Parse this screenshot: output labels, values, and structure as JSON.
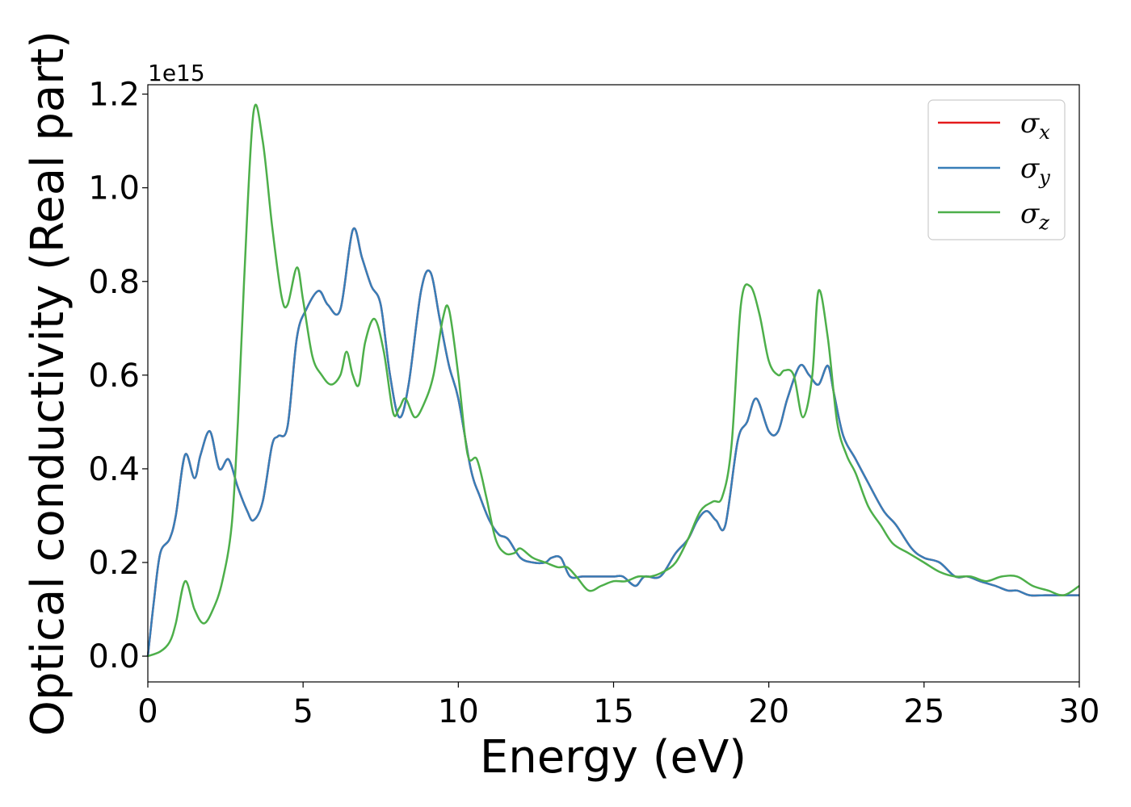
{
  "chart_data": {
    "type": "line",
    "xlabel": "Energy (eV)",
    "ylabel": "Optical conductivity (Real part)",
    "y_offset_label": "1e15",
    "xlim": [
      0,
      30
    ],
    "ylim": [
      -0.055,
      1.22
    ],
    "xticks": [
      0,
      5,
      10,
      15,
      20,
      25,
      30
    ],
    "xtick_labels": [
      "0",
      "5",
      "10",
      "15",
      "20",
      "25",
      "30"
    ],
    "yticks": [
      0.0,
      0.2,
      0.4,
      0.6,
      0.8,
      1.0,
      1.2
    ],
    "ytick_labels": [
      "0.0",
      "0.2",
      "0.4",
      "0.6",
      "0.8",
      "1.0",
      "1.2"
    ],
    "grid": false,
    "legend_position": "top-right",
    "colors": {
      "sigma_x": "#e41a1c",
      "sigma_y": "#377eb8",
      "sigma_z": "#4daf4a"
    },
    "series": [
      {
        "name": "σx",
        "legend_base": "σ",
        "legend_sub": "x",
        "color": "#e41a1c",
        "same_as": "σy",
        "x": [
          0,
          0.2,
          0.4,
          0.7,
          0.9,
          1.2,
          1.5,
          1.7,
          2.0,
          2.3,
          2.6,
          2.9,
          3.2,
          3.4,
          3.7,
          4.0,
          4.2,
          4.5,
          4.8,
          5.1,
          5.5,
          5.8,
          6.2,
          6.6,
          6.9,
          7.2,
          7.5,
          7.8,
          8.1,
          8.4,
          8.8,
          9.1,
          9.4,
          9.7,
          10.0,
          10.4,
          10.7,
          11.0,
          11.3,
          11.6,
          12.0,
          12.4,
          12.8,
          13.0,
          13.3,
          13.6,
          14.0,
          14.5,
          15.0,
          15.3,
          15.7,
          16.0,
          16.5,
          17.0,
          17.4,
          17.7,
          18.0,
          18.3,
          18.6,
          19.0,
          19.3,
          19.6,
          20.0,
          20.3,
          20.6,
          21.0,
          21.3,
          21.6,
          21.9,
          22.1,
          22.4,
          22.8,
          23.2,
          23.7,
          24.1,
          24.6,
          25.0,
          25.5,
          26.0,
          26.4,
          26.8,
          27.3,
          27.7,
          28.0,
          28.4,
          28.9,
          29.2,
          29.6,
          30.0
        ],
        "y": [
          0.0,
          0.12,
          0.22,
          0.25,
          0.3,
          0.43,
          0.38,
          0.43,
          0.48,
          0.4,
          0.42,
          0.36,
          0.31,
          0.29,
          0.33,
          0.45,
          0.47,
          0.49,
          0.68,
          0.74,
          0.78,
          0.75,
          0.74,
          0.91,
          0.85,
          0.79,
          0.75,
          0.6,
          0.51,
          0.58,
          0.78,
          0.82,
          0.72,
          0.62,
          0.55,
          0.4,
          0.34,
          0.29,
          0.26,
          0.25,
          0.21,
          0.2,
          0.2,
          0.21,
          0.21,
          0.17,
          0.17,
          0.17,
          0.17,
          0.17,
          0.15,
          0.17,
          0.17,
          0.22,
          0.25,
          0.29,
          0.31,
          0.29,
          0.28,
          0.46,
          0.5,
          0.55,
          0.48,
          0.48,
          0.55,
          0.62,
          0.6,
          0.58,
          0.62,
          0.56,
          0.47,
          0.42,
          0.37,
          0.31,
          0.28,
          0.23,
          0.21,
          0.2,
          0.17,
          0.17,
          0.16,
          0.15,
          0.14,
          0.14,
          0.13,
          0.13,
          0.13,
          0.13,
          0.13
        ]
      },
      {
        "name": "σy",
        "legend_base": "σ",
        "legend_sub": "y",
        "color": "#377eb8",
        "x": [
          0,
          0.2,
          0.4,
          0.7,
          0.9,
          1.2,
          1.5,
          1.7,
          2.0,
          2.3,
          2.6,
          2.9,
          3.2,
          3.4,
          3.7,
          4.0,
          4.2,
          4.5,
          4.8,
          5.1,
          5.5,
          5.8,
          6.2,
          6.6,
          6.9,
          7.2,
          7.5,
          7.8,
          8.1,
          8.4,
          8.8,
          9.1,
          9.4,
          9.7,
          10.0,
          10.4,
          10.7,
          11.0,
          11.3,
          11.6,
          12.0,
          12.4,
          12.8,
          13.0,
          13.3,
          13.6,
          14.0,
          14.5,
          15.0,
          15.3,
          15.7,
          16.0,
          16.5,
          17.0,
          17.4,
          17.7,
          18.0,
          18.3,
          18.6,
          19.0,
          19.3,
          19.6,
          20.0,
          20.3,
          20.6,
          21.0,
          21.3,
          21.6,
          21.9,
          22.1,
          22.4,
          22.8,
          23.2,
          23.7,
          24.1,
          24.6,
          25.0,
          25.5,
          26.0,
          26.4,
          26.8,
          27.3,
          27.7,
          28.0,
          28.4,
          28.9,
          29.2,
          29.6,
          30.0
        ],
        "y": [
          0.0,
          0.12,
          0.22,
          0.25,
          0.3,
          0.43,
          0.38,
          0.43,
          0.48,
          0.4,
          0.42,
          0.36,
          0.31,
          0.29,
          0.33,
          0.45,
          0.47,
          0.49,
          0.68,
          0.74,
          0.78,
          0.75,
          0.74,
          0.91,
          0.85,
          0.79,
          0.75,
          0.6,
          0.51,
          0.58,
          0.78,
          0.82,
          0.72,
          0.62,
          0.55,
          0.4,
          0.34,
          0.29,
          0.26,
          0.25,
          0.21,
          0.2,
          0.2,
          0.21,
          0.21,
          0.17,
          0.17,
          0.17,
          0.17,
          0.17,
          0.15,
          0.17,
          0.17,
          0.22,
          0.25,
          0.29,
          0.31,
          0.29,
          0.28,
          0.46,
          0.5,
          0.55,
          0.48,
          0.48,
          0.55,
          0.62,
          0.6,
          0.58,
          0.62,
          0.56,
          0.47,
          0.42,
          0.37,
          0.31,
          0.28,
          0.23,
          0.21,
          0.2,
          0.17,
          0.17,
          0.16,
          0.15,
          0.14,
          0.14,
          0.13,
          0.13,
          0.13,
          0.13,
          0.13
        ]
      },
      {
        "name": "σz",
        "legend_base": "σ",
        "legend_sub": "z",
        "color": "#4daf4a",
        "x": [
          0,
          0.4,
          0.7,
          0.9,
          1.2,
          1.5,
          1.8,
          2.1,
          2.4,
          2.7,
          2.9,
          3.1,
          3.4,
          3.7,
          4.0,
          4.3,
          4.5,
          4.8,
          5.0,
          5.3,
          5.6,
          5.9,
          6.2,
          6.4,
          6.6,
          6.8,
          7.0,
          7.3,
          7.6,
          7.9,
          8.1,
          8.3,
          8.6,
          8.9,
          9.2,
          9.5,
          9.7,
          10.0,
          10.3,
          10.6,
          10.9,
          11.2,
          11.5,
          11.8,
          12.0,
          12.4,
          12.8,
          13.2,
          13.5,
          13.8,
          14.2,
          14.6,
          15.0,
          15.4,
          15.8,
          16.2,
          16.6,
          17.0,
          17.4,
          17.8,
          18.2,
          18.5,
          18.8,
          19.1,
          19.4,
          19.7,
          20.0,
          20.3,
          20.5,
          20.8,
          21.1,
          21.4,
          21.6,
          21.9,
          22.2,
          22.5,
          22.8,
          23.2,
          23.6,
          24.0,
          24.5,
          25.0,
          25.5,
          26.0,
          26.5,
          27.0,
          27.5,
          28.0,
          28.5,
          29.0,
          29.5,
          30.0
        ],
        "y": [
          0.0,
          0.01,
          0.03,
          0.07,
          0.16,
          0.1,
          0.07,
          0.1,
          0.16,
          0.28,
          0.5,
          0.8,
          1.16,
          1.1,
          0.92,
          0.77,
          0.75,
          0.83,
          0.76,
          0.64,
          0.6,
          0.58,
          0.6,
          0.65,
          0.6,
          0.58,
          0.67,
          0.72,
          0.65,
          0.52,
          0.53,
          0.55,
          0.51,
          0.54,
          0.6,
          0.72,
          0.74,
          0.6,
          0.43,
          0.42,
          0.34,
          0.25,
          0.22,
          0.22,
          0.23,
          0.21,
          0.2,
          0.19,
          0.19,
          0.17,
          0.14,
          0.15,
          0.16,
          0.16,
          0.17,
          0.17,
          0.18,
          0.2,
          0.25,
          0.31,
          0.33,
          0.34,
          0.45,
          0.75,
          0.79,
          0.73,
          0.63,
          0.6,
          0.61,
          0.6,
          0.51,
          0.6,
          0.78,
          0.68,
          0.5,
          0.43,
          0.39,
          0.32,
          0.28,
          0.24,
          0.22,
          0.2,
          0.18,
          0.17,
          0.17,
          0.16,
          0.17,
          0.17,
          0.15,
          0.14,
          0.13,
          0.15
        ]
      }
    ]
  }
}
